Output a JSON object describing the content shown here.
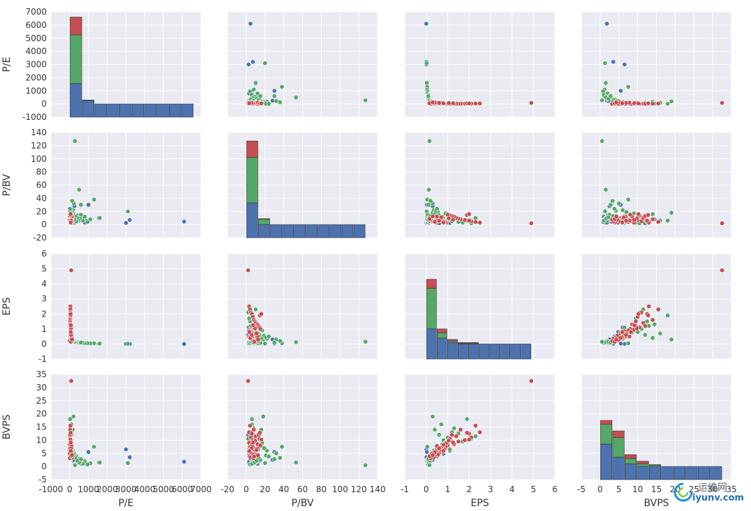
{
  "chart_data": {
    "type": "scatter",
    "kind": "pairplot",
    "variables": [
      "P/E",
      "P/BV",
      "EPS",
      "BVPS"
    ],
    "series_colors": [
      "#4c72b0",
      "#55a868",
      "#c44e52"
    ],
    "axes": {
      "P/E": {
        "lim": [
          -1000,
          7000
        ],
        "ticks": [
          "-1000",
          "0",
          "1000",
          "2000",
          "3000",
          "4000",
          "5000",
          "6000",
          "7000"
        ],
        "tick_values": [
          -1000,
          0,
          1000,
          2000,
          3000,
          4000,
          5000,
          6000,
          7000
        ]
      },
      "P/BV": {
        "lim": [
          -20,
          140
        ],
        "ticks": [
          "-20",
          "0",
          "20",
          "40",
          "60",
          "80",
          "100",
          "120",
          "140"
        ],
        "tick_values": [
          -20,
          0,
          20,
          40,
          60,
          80,
          100,
          120,
          140
        ]
      },
      "EPS": {
        "lim": [
          -1,
          6
        ],
        "ticks": [
          "-1",
          "0",
          "1",
          "2",
          "3",
          "4",
          "5",
          "6"
        ],
        "tick_values": [
          -1,
          0,
          1,
          2,
          3,
          4,
          5,
          6
        ]
      },
      "BVPS": {
        "lim": [
          -5,
          35
        ],
        "ticks": [
          "-5",
          "0",
          "5",
          "10",
          "15",
          "20",
          "25",
          "30",
          "35"
        ],
        "tick_values": [
          -5,
          0,
          5,
          10,
          15,
          20,
          25,
          30,
          35
        ]
      }
    },
    "histograms": {
      "P/E": {
        "count_lim": [
          -1000,
          7000
        ],
        "bins": [
          0,
          660,
          1320,
          1980,
          2640,
          3300,
          3960,
          4620,
          5280,
          5940,
          6600
        ],
        "counts": [
          [
            1550,
            250,
            0,
            0,
            0,
            0,
            0,
            0,
            0,
            0
          ],
          [
            3700,
            50,
            0,
            0,
            0,
            0,
            0,
            0,
            0,
            0
          ],
          [
            1350,
            0,
            0,
            0,
            0,
            0,
            0,
            0,
            0,
            0
          ]
        ]
      },
      "P/BV": {
        "count_lim": [
          -20,
          140
        ],
        "bins": [
          0,
          12.7,
          25.4,
          38.1,
          50.8,
          63.5,
          76.2,
          88.9,
          101.6,
          114.3,
          127
        ],
        "counts": [
          [
            33,
            0,
            0,
            0,
            0,
            0,
            0,
            0,
            0,
            0
          ],
          [
            69,
            8,
            0,
            0,
            0,
            0,
            0,
            0,
            0,
            0
          ],
          [
            25,
            1,
            0,
            0,
            0,
            0,
            0,
            0,
            0,
            0
          ]
        ]
      },
      "EPS": {
        "count_lim": [
          -1,
          6
        ],
        "bins": [
          0,
          0.49,
          0.98,
          1.47,
          1.96,
          2.45,
          2.94,
          3.43,
          3.92,
          4.41,
          4.9
        ],
        "counts": [
          [
            1.0,
            0.4,
            0.1,
            0,
            0,
            0,
            0,
            0,
            0,
            0
          ],
          [
            2.7,
            0.35,
            0.1,
            0.05,
            0.05,
            0,
            0,
            0,
            0,
            0
          ],
          [
            0.6,
            0.25,
            0.1,
            0.05,
            0.05,
            0,
            0,
            0,
            0,
            0
          ]
        ]
      },
      "BVPS": {
        "count_lim": [
          -5,
          35
        ],
        "bins": [
          0,
          3.25,
          6.5,
          9.75,
          13,
          16.25,
          19.5,
          22.75,
          26,
          29.25,
          32.5
        ],
        "counts": [
          [
            8.5,
            3.5,
            1,
            0,
            0,
            0,
            0,
            0,
            0,
            0
          ],
          [
            7.5,
            7.5,
            2,
            1,
            0.5,
            0,
            0,
            0,
            0,
            0
          ],
          [
            1.5,
            2.5,
            1.5,
            1,
            0.2,
            0,
            0,
            0,
            0,
            0
          ]
        ]
      }
    },
    "series": [
      {
        "points": [
          [
            6100,
            4.5,
            0.0,
            1.8
          ],
          [
            3200,
            7.0,
            0.01,
            3.5
          ],
          [
            3000,
            2.5,
            0.01,
            6.5
          ],
          [
            1550,
            10,
            0.02,
            1.5
          ],
          [
            1000,
            30,
            0.03,
            5.5
          ],
          [
            900,
            5.5,
            0.04,
            0.8
          ],
          [
            800,
            3.0,
            0.05,
            1.2
          ],
          [
            600,
            12,
            0.06,
            1.0
          ],
          [
            500,
            6,
            0.05,
            1.6
          ],
          [
            400,
            8,
            0.07,
            2.0
          ],
          [
            350,
            4,
            0.08,
            2.5
          ],
          [
            300,
            9,
            0.1,
            3.0
          ],
          [
            250,
            3,
            0.12,
            1.8
          ],
          [
            200,
            6,
            0.15,
            2.2
          ],
          [
            180,
            11,
            0.18,
            3.4
          ],
          [
            150,
            5,
            0.2,
            2.8
          ],
          [
            120,
            7,
            0.25,
            4.0
          ],
          [
            100,
            4,
            0.3,
            3.1
          ],
          [
            90,
            8,
            0.35,
            4.5
          ],
          [
            80,
            3,
            0.4,
            3.8
          ],
          [
            70,
            6,
            0.5,
            5.0
          ],
          [
            60,
            9,
            0.55,
            6.2
          ],
          [
            50,
            5,
            0.7,
            5.5
          ],
          [
            40,
            4,
            0.9,
            7.0
          ],
          [
            30,
            7,
            1.2,
            9.5
          ],
          [
            250,
            28,
            0.3,
            2.5
          ],
          [
            400,
            14,
            0.2,
            2.0
          ],
          [
            120,
            2,
            0.6,
            12.0
          ],
          [
            90,
            3,
            0.8,
            4.8
          ],
          [
            60,
            2.5,
            1.1,
            6.0
          ]
        ]
      },
      {
        "points": [
          [
            3100,
            20,
            0.02,
            1.3
          ],
          [
            1600,
            10,
            0.03,
            1.5
          ],
          [
            1300,
            38,
            0.05,
            7.5
          ],
          [
            1100,
            8,
            0.04,
            1.2
          ],
          [
            950,
            4,
            0.06,
            0.8
          ],
          [
            800,
            12,
            0.05,
            2.0
          ],
          [
            700,
            6,
            0.08,
            1.0
          ],
          [
            600,
            15,
            0.07,
            2.5
          ],
          [
            550,
            9,
            0.09,
            1.6
          ],
          [
            500,
            53,
            0.12,
            1.5
          ],
          [
            450,
            7,
            0.1,
            3.0
          ],
          [
            400,
            11,
            0.15,
            2.2
          ],
          [
            350,
            5,
            0.18,
            4.0
          ],
          [
            300,
            13,
            0.2,
            3.5
          ],
          [
            280,
            127,
            0.15,
            0.5
          ],
          [
            250,
            8,
            0.25,
            4.5
          ],
          [
            220,
            32,
            0.3,
            5.0
          ],
          [
            200,
            18,
            0.3,
            19.0
          ],
          [
            180,
            22,
            0.35,
            6.0
          ],
          [
            160,
            16,
            0.4,
            14.0
          ],
          [
            140,
            10,
            0.5,
            5.5
          ],
          [
            120,
            19,
            0.55,
            7.0
          ],
          [
            100,
            14,
            0.6,
            12.0
          ],
          [
            90,
            6,
            0.7,
            16.0
          ],
          [
            80,
            12,
            0.75,
            8.5
          ],
          [
            70,
            9,
            0.8,
            10.0
          ],
          [
            60,
            17,
            0.9,
            9.0
          ],
          [
            50,
            7,
            1.0,
            11.0
          ],
          [
            45,
            13,
            1.1,
            6.5
          ],
          [
            40,
            5,
            1.2,
            13.0
          ],
          [
            35,
            8,
            1.3,
            14.5
          ],
          [
            30,
            4,
            1.5,
            12.5
          ],
          [
            25,
            3,
            1.7,
            9.5
          ],
          [
            20,
            6,
            1.9,
            18.0
          ],
          [
            18,
            2,
            2.1,
            10.5
          ],
          [
            15,
            10,
            2.3,
            11.5
          ],
          [
            12,
            21,
            0.45,
            4.2
          ],
          [
            10,
            24,
            0.5,
            3.8
          ],
          [
            600,
            30,
            0.1,
            2.8
          ],
          [
            130,
            36,
            0.2,
            3.3
          ]
        ]
      },
      {
        "points": [
          [
            80,
            2,
            4.9,
            32.5
          ],
          [
            40,
            3,
            2.5,
            13.0
          ],
          [
            35,
            4,
            2.3,
            15.5
          ],
          [
            30,
            5,
            2.1,
            11.0
          ],
          [
            25,
            6,
            2.0,
            12.5
          ],
          [
            28,
            7,
            1.8,
            10.0
          ],
          [
            22,
            8,
            1.6,
            14.0
          ],
          [
            20,
            9,
            1.5,
            9.5
          ],
          [
            18,
            10,
            1.4,
            11.5
          ],
          [
            16,
            12,
            1.3,
            8.5
          ],
          [
            15,
            13,
            1.2,
            12.0
          ],
          [
            14,
            14,
            1.1,
            10.5
          ],
          [
            13,
            15,
            1.0,
            8.0
          ],
          [
            12,
            3,
            0.95,
            9.0
          ],
          [
            11,
            4,
            0.9,
            7.5
          ],
          [
            10,
            5,
            0.85,
            6.5
          ],
          [
            9,
            6,
            0.8,
            8.2
          ],
          [
            8,
            7,
            0.75,
            5.5
          ],
          [
            7,
            8,
            0.7,
            7.0
          ],
          [
            6,
            9,
            0.65,
            6.0
          ],
          [
            5,
            10,
            0.6,
            5.0
          ],
          [
            4,
            11,
            0.55,
            4.5
          ],
          [
            3.5,
            12,
            0.5,
            6.8
          ],
          [
            3,
            2.5,
            0.45,
            5.8
          ],
          [
            2.5,
            3.5,
            0.4,
            4.0
          ],
          [
            2,
            4.5,
            0.35,
            3.5
          ],
          [
            1.5,
            5.5,
            0.3,
            5.2
          ],
          [
            1,
            6.5,
            0.25,
            4.8
          ],
          [
            0.5,
            7.5,
            0.2,
            3.2
          ],
          [
            60,
            8.5,
            0.15,
            3.9
          ],
          [
            70,
            9.5,
            1.05,
            9.8
          ],
          [
            90,
            11,
            0.7,
            6.3
          ],
          [
            100,
            6.2,
            0.5,
            7.8
          ],
          [
            110,
            4.2,
            0.4,
            5.4
          ],
          [
            120,
            12.5,
            0.3,
            4.3
          ],
          [
            50,
            14.5,
            1.9,
            12.8
          ],
          [
            45,
            16,
            2.0,
            10.2
          ],
          [
            65,
            7.2,
            1.25,
            9.1
          ],
          [
            75,
            5.8,
            0.6,
            6.9
          ],
          [
            55,
            3.2,
            0.8,
            5.9
          ]
        ]
      }
    ]
  },
  "watermark": {
    "top": "运维网",
    "bottom": "iyunv.com"
  }
}
